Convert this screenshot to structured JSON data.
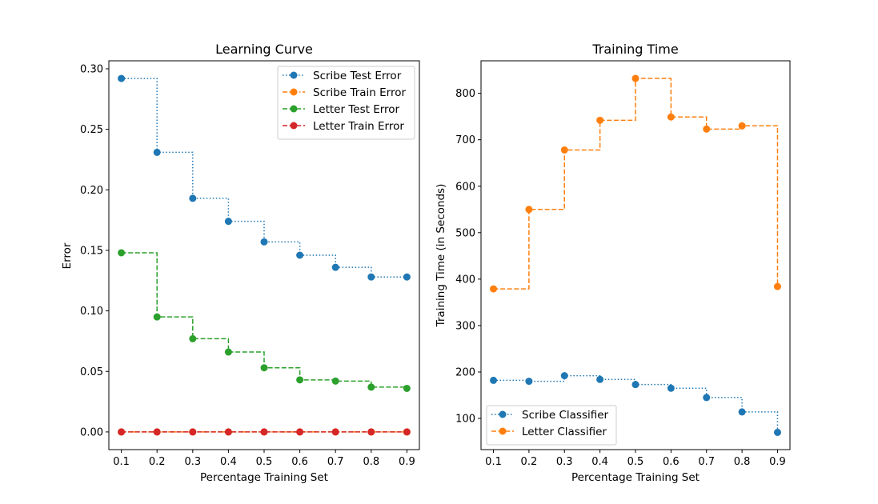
{
  "chart_data": [
    {
      "type": "line",
      "title": "Learning Curve",
      "xlabel": "Percentage Training Set",
      "ylabel": "Error",
      "x": [
        0.1,
        0.2,
        0.3,
        0.4,
        0.5,
        0.6,
        0.7,
        0.8,
        0.9
      ],
      "xlim": [
        0.065,
        0.935
      ],
      "ylim": [
        -0.0146,
        0.3066
      ],
      "xticks": [
        "0.1",
        "0.2",
        "0.3",
        "0.4",
        "0.5",
        "0.6",
        "0.7",
        "0.8",
        "0.9"
      ],
      "yticks": [
        0.0,
        0.05,
        0.1,
        0.15,
        0.2,
        0.25,
        0.3
      ],
      "yticklabels": [
        "0.00",
        "0.05",
        "0.10",
        "0.15",
        "0.20",
        "0.25",
        "0.30"
      ],
      "drawstyle": "steps-post",
      "legend_position": "upper right",
      "series": [
        {
          "name": "Scribe Test Error",
          "color": "#1f77b4",
          "linestyle": "dotted",
          "values": [
            0.292,
            0.231,
            0.193,
            0.174,
            0.157,
            0.146,
            0.136,
            0.128,
            0.128
          ]
        },
        {
          "name": "Scribe Train Error",
          "color": "#ff7f0e",
          "linestyle": "dashdot",
          "values": [
            0,
            0,
            0,
            0,
            0,
            0,
            0,
            0,
            0
          ]
        },
        {
          "name": "Letter Test Error",
          "color": "#2ca02c",
          "linestyle": "dashed",
          "values": [
            0.148,
            0.095,
            0.077,
            0.066,
            0.053,
            0.043,
            0.042,
            0.037,
            0.036
          ]
        },
        {
          "name": "Letter Train Error",
          "color": "#d62728",
          "linestyle": "dashed",
          "values": [
            0,
            0,
            0,
            0,
            0,
            0,
            0,
            0,
            0
          ]
        }
      ]
    },
    {
      "type": "line",
      "title": "Training Time",
      "xlabel": "Percentage Training Set",
      "ylabel": "Training Time (in Seconds)",
      "x": [
        0.1,
        0.2,
        0.3,
        0.4,
        0.5,
        0.6,
        0.7,
        0.8,
        0.9
      ],
      "xlim": [
        0.065,
        0.935
      ],
      "ylim": [
        32.9,
        870
      ],
      "xticks": [
        "0.1",
        "0.2",
        "0.3",
        "0.4",
        "0.5",
        "0.6",
        "0.7",
        "0.8",
        "0.9"
      ],
      "yticks": [
        100,
        200,
        300,
        400,
        500,
        600,
        700,
        800
      ],
      "yticklabels": [
        "100",
        "200",
        "300",
        "400",
        "500",
        "600",
        "700",
        "800"
      ],
      "drawstyle": "steps-post",
      "legend_position": "lower left",
      "series": [
        {
          "name": "Scribe Classifier",
          "color": "#1f77b4",
          "linestyle": "dotted",
          "values": [
            182,
            180,
            192,
            184,
            173,
            165,
            145,
            114,
            70
          ]
        },
        {
          "name": "Letter Classifier",
          "color": "#ff7f0e",
          "linestyle": "dashed",
          "values": [
            379,
            550,
            678,
            742,
            832,
            749,
            723,
            730,
            384
          ]
        }
      ]
    }
  ]
}
